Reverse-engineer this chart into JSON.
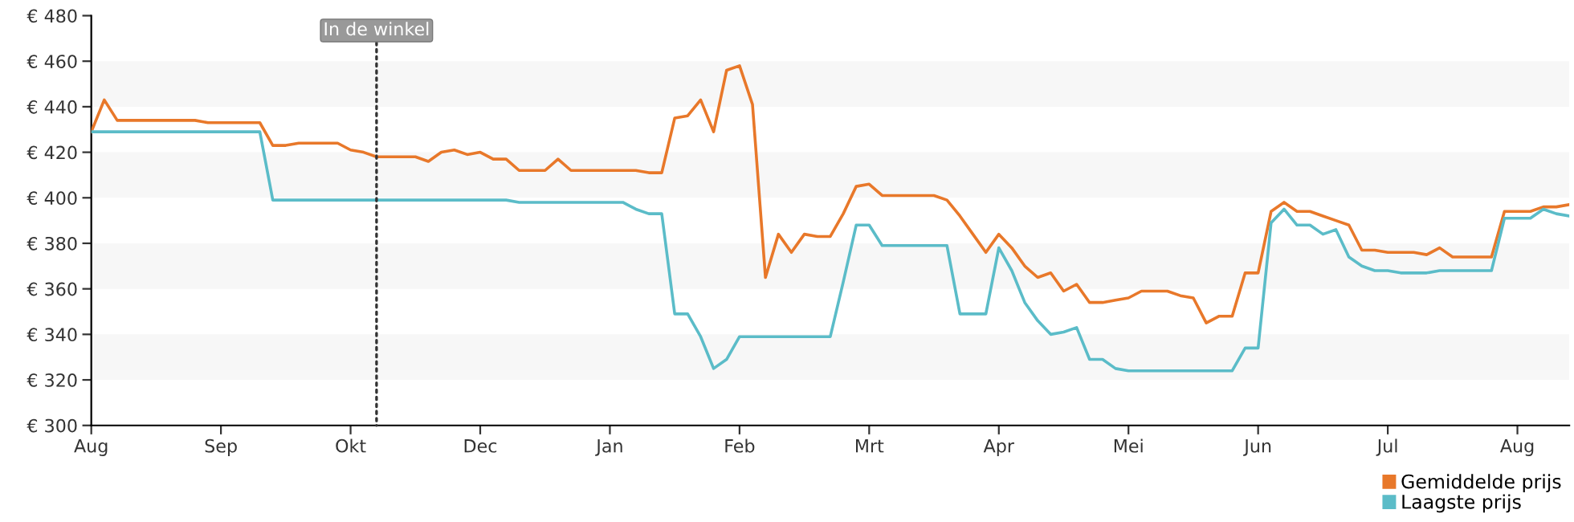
{
  "chart_data": {
    "type": "line",
    "categories": [
      "Aug",
      null,
      null,
      null,
      null,
      null,
      null,
      null,
      null,
      null,
      "Sep",
      null,
      null,
      null,
      null,
      null,
      null,
      null,
      null,
      null,
      "Okt",
      null,
      null,
      null,
      null,
      null,
      null,
      null,
      null,
      null,
      "Dec",
      null,
      null,
      null,
      null,
      null,
      null,
      null,
      null,
      null,
      "Jan",
      null,
      null,
      null,
      null,
      null,
      null,
      null,
      null,
      null,
      "Feb",
      null,
      null,
      null,
      null,
      null,
      null,
      null,
      null,
      null,
      "Mrt",
      null,
      null,
      null,
      null,
      null,
      null,
      null,
      null,
      null,
      "Apr",
      null,
      null,
      null,
      null,
      null,
      null,
      null,
      null,
      null,
      "Mei",
      null,
      null,
      null,
      null,
      null,
      null,
      null,
      null,
      null,
      "Jun",
      null,
      null,
      null,
      null,
      null,
      null,
      null,
      null,
      null,
      "Jul",
      null,
      null,
      null,
      null,
      null,
      null,
      null,
      null,
      null,
      "Aug",
      null,
      null,
      null,
      null
    ],
    "ylim": [
      300,
      480
    ],
    "yticks": [
      {
        "value": 300,
        "label": "€ 300"
      },
      {
        "value": 320,
        "label": "€ 320"
      },
      {
        "value": 340,
        "label": "€ 340"
      },
      {
        "value": 360,
        "label": "€ 360"
      },
      {
        "value": 380,
        "label": "€ 380"
      },
      {
        "value": 400,
        "label": "€ 400"
      },
      {
        "value": 420,
        "label": "€ 420"
      },
      {
        "value": 440,
        "label": "€ 440"
      },
      {
        "value": 460,
        "label": "€ 460"
      },
      {
        "value": 480,
        "label": "€ 480"
      }
    ],
    "grid": false,
    "legend": "bottom right",
    "marker": "none",
    "line_style": "solid",
    "bands": [
      {
        "axis": "y",
        "from": 320,
        "to": 340,
        "color": "#f7f7f7"
      },
      {
        "axis": "y",
        "from": 360,
        "to": 380,
        "color": "#f7f7f7"
      },
      {
        "axis": "y",
        "from": 400,
        "to": 420,
        "color": "#f7f7f7"
      },
      {
        "axis": "y",
        "from": 440,
        "to": 460,
        "color": "#f7f7f7"
      }
    ],
    "annotations": [
      "In de winkel"
    ],
    "series": [
      {
        "name": "Gemiddelde prijs",
        "color": "#e8782a",
        "values": [
          429,
          443,
          434,
          434,
          434,
          434,
          434,
          434,
          434,
          433,
          433,
          433,
          433,
          433,
          423,
          423,
          424,
          424,
          424,
          424,
          421,
          420,
          418,
          418,
          418,
          418,
          416,
          420,
          421,
          419,
          420,
          417,
          417,
          412,
          412,
          412,
          417,
          412,
          412,
          412,
          412,
          412,
          412,
          411,
          411,
          435,
          436,
          443,
          429,
          456,
          458,
          441,
          365,
          384,
          376,
          384,
          383,
          383,
          393,
          405,
          406,
          401,
          401,
          401,
          401,
          401,
          399,
          392,
          384,
          376,
          384,
          378,
          370,
          365,
          367,
          359,
          362,
          354,
          354,
          355,
          356,
          359,
          359,
          359,
          357,
          356,
          345,
          348,
          348,
          367,
          367,
          394,
          398,
          394,
          394,
          392,
          390,
          388,
          377,
          377,
          376,
          376,
          376,
          375,
          378,
          374,
          374,
          374,
          374,
          394,
          394,
          394,
          396,
          396,
          397
        ]
      },
      {
        "name": "Laagste prijs",
        "color": "#5bbcc8",
        "values": [
          429,
          429,
          429,
          429,
          429,
          429,
          429,
          429,
          429,
          429,
          429,
          429,
          429,
          429,
          399,
          399,
          399,
          399,
          399,
          399,
          399,
          399,
          399,
          399,
          399,
          399,
          399,
          399,
          399,
          399,
          399,
          399,
          399,
          398,
          398,
          398,
          398,
          398,
          398,
          398,
          398,
          398,
          395,
          393,
          393,
          349,
          349,
          339,
          325,
          329,
          339,
          339,
          339,
          339,
          339,
          339,
          339,
          339,
          363,
          388,
          388,
          379,
          379,
          379,
          379,
          379,
          379,
          349,
          349,
          349,
          378,
          368,
          354,
          346,
          340,
          341,
          343,
          329,
          329,
          325,
          324,
          324,
          324,
          324,
          324,
          324,
          324,
          324,
          324,
          334,
          334,
          389,
          395,
          388,
          388,
          384,
          386,
          374,
          370,
          368,
          368,
          367,
          367,
          367,
          368,
          368,
          368,
          368,
          368,
          391,
          391,
          391,
          395,
          393,
          392
        ]
      }
    ]
  }
}
